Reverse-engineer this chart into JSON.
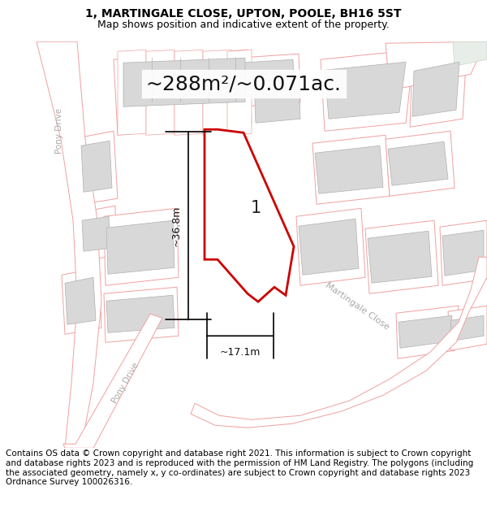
{
  "title_line1": "1, MARTINGALE CLOSE, UPTON, POOLE, BH16 5ST",
  "title_line2": "Map shows position and indicative extent of the property.",
  "area_text": "~288m²/~0.071ac.",
  "label_number": "1",
  "dim_height": "~36.8m",
  "dim_width": "~17.1m",
  "road_label1": "Martingale Close",
  "road_label2": "Pony Drive",
  "road_label3": "Pony Drive",
  "footer_text": "Contains OS data © Crown copyright and database right 2021. This information is subject to Crown copyright and database rights 2023 and is reproduced with the permission of HM Land Registry. The polygons (including the associated geometry, namely x, y co-ordinates) are subject to Crown copyright and database rights 2023 Ordnance Survey 100026316.",
  "bg_color": "#ffffff",
  "map_bg": "#ffffff",
  "plot_edge_color": "#cc0000",
  "building_fill": "#d8d8d8",
  "building_edge": "#b0b0b0",
  "parcel_edge": "#f0a0a0",
  "road_fill": "#ffffff",
  "road_label_color": "#aaaaaa",
  "title_fontsize": 10,
  "subtitle_fontsize": 9,
  "area_fontsize": 18,
  "footer_fontsize": 7.5
}
